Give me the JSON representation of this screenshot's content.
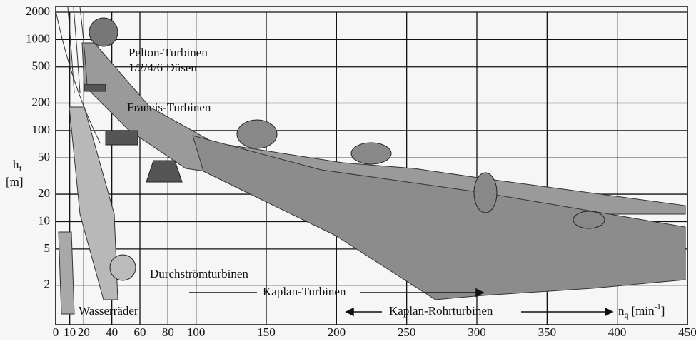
{
  "chart_data": {
    "type": "region",
    "xlim": [
      0,
      450
    ],
    "xticks": [
      0,
      10,
      20,
      40,
      60,
      80,
      100,
      150,
      200,
      250,
      300,
      350,
      400,
      450
    ],
    "ylim": [
      1,
      2000
    ],
    "yticks": [
      2,
      5,
      10,
      20,
      50,
      100,
      200,
      500,
      1000,
      2000
    ],
    "log_y": true,
    "grid": true,
    "y_label": "h",
    "y_label_sub": "f",
    "y_label_unit": "[m]",
    "x_label": "n",
    "x_label_sub": "q",
    "x_label_unit": "[min",
    "x_label_sup": "-1",
    "x_label_close": "]",
    "annotations": [
      "Pelton-Turbinen",
      "1/2/4/6 Düsen",
      "Francis-Turbinen",
      "Durchströmturbinen",
      "Kaplan-Turbinen",
      "Kaplan-Rohrturbinen",
      "Wasserräder"
    ]
  }
}
